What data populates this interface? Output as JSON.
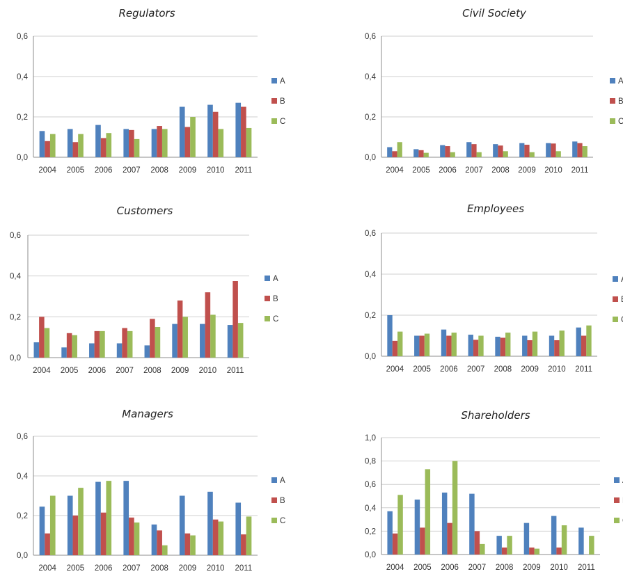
{
  "colors": {
    "A": "#4f81bd",
    "B": "#c0504d",
    "C": "#9bbb59"
  },
  "chart_data": [
    {
      "type": "bar",
      "title": "Regulators",
      "categories": [
        "2004",
        "2005",
        "2006",
        "2007",
        "2008",
        "2009",
        "2010",
        "2011"
      ],
      "yticks": [
        "0,0",
        "0,2",
        "0,4",
        "0,6"
      ],
      "ylim": [
        0,
        0.6
      ],
      "legend_position": "right",
      "series": [
        {
          "name": "A",
          "values": [
            0.13,
            0.14,
            0.16,
            0.14,
            0.14,
            0.25,
            0.26,
            0.27
          ]
        },
        {
          "name": "B",
          "values": [
            0.08,
            0.075,
            0.095,
            0.135,
            0.155,
            0.15,
            0.225,
            0.25
          ]
        },
        {
          "name": "C",
          "values": [
            0.115,
            0.115,
            0.12,
            0.09,
            0.14,
            0.2,
            0.14,
            0.145
          ]
        }
      ]
    },
    {
      "type": "bar",
      "title": "Civil Society",
      "categories": [
        "2004",
        "2005",
        "2006",
        "2007",
        "2008",
        "2009",
        "2010",
        "2011"
      ],
      "yticks": [
        "0,0",
        "0,2",
        "0,4",
        "0,6"
      ],
      "ylim": [
        0,
        0.6
      ],
      "legend_position": "right",
      "series": [
        {
          "name": "A",
          "values": [
            0.05,
            0.04,
            0.06,
            0.075,
            0.065,
            0.07,
            0.07,
            0.078
          ]
        },
        {
          "name": "B",
          "values": [
            0.03,
            0.035,
            0.055,
            0.065,
            0.058,
            0.062,
            0.068,
            0.07
          ]
        },
        {
          "name": "C",
          "values": [
            0.075,
            0.022,
            0.025,
            0.025,
            0.03,
            0.025,
            0.03,
            0.055
          ]
        }
      ]
    },
    {
      "type": "bar",
      "title": "Customers",
      "categories": [
        "2004",
        "2005",
        "2006",
        "2007",
        "2008",
        "2009",
        "2010",
        "2011"
      ],
      "yticks": [
        "0,0",
        "0,2",
        "0,4",
        "0,6"
      ],
      "ylim": [
        0,
        0.6
      ],
      "legend_position": "right",
      "series": [
        {
          "name": "A",
          "values": [
            0.075,
            0.05,
            0.07,
            0.07,
            0.06,
            0.165,
            0.165,
            0.16
          ]
        },
        {
          "name": "B",
          "values": [
            0.2,
            0.12,
            0.13,
            0.145,
            0.19,
            0.28,
            0.32,
            0.375
          ]
        },
        {
          "name": "C",
          "values": [
            0.145,
            0.11,
            0.13,
            0.13,
            0.15,
            0.2,
            0.21,
            0.17
          ]
        }
      ]
    },
    {
      "type": "bar",
      "title": "Employees",
      "categories": [
        "2004",
        "2005",
        "2006",
        "2007",
        "2008",
        "2009",
        "2010",
        "2011"
      ],
      "yticks": [
        "0,0",
        "0,2",
        "0,4",
        "0,6"
      ],
      "ylim": [
        0,
        0.6
      ],
      "legend_position": "right",
      "series": [
        {
          "name": "A",
          "values": [
            0.2,
            0.1,
            0.13,
            0.105,
            0.095,
            0.1,
            0.1,
            0.14
          ]
        },
        {
          "name": "B",
          "values": [
            0.075,
            0.1,
            0.1,
            0.08,
            0.09,
            0.078,
            0.078,
            0.1
          ]
        },
        {
          "name": "C",
          "values": [
            0.12,
            0.11,
            0.115,
            0.1,
            0.115,
            0.12,
            0.125,
            0.15
          ]
        }
      ]
    },
    {
      "type": "bar",
      "title": "Managers",
      "categories": [
        "2004",
        "2005",
        "2006",
        "2007",
        "2008",
        "2009",
        "2010",
        "2011"
      ],
      "yticks": [
        "0,0",
        "0,2",
        "0,4",
        "0,6"
      ],
      "ylim": [
        0,
        0.6
      ],
      "legend_position": "right",
      "series": [
        {
          "name": "A",
          "values": [
            0.245,
            0.3,
            0.37,
            0.375,
            0.155,
            0.3,
            0.32,
            0.265
          ]
        },
        {
          "name": "B",
          "values": [
            0.11,
            0.2,
            0.215,
            0.19,
            0.125,
            0.11,
            0.18,
            0.105
          ]
        },
        {
          "name": "C",
          "values": [
            0.3,
            0.34,
            0.375,
            0.165,
            0.05,
            0.1,
            0.17,
            0.195
          ]
        }
      ]
    },
    {
      "type": "bar",
      "title": "Shareholders",
      "categories": [
        "2004",
        "2005",
        "2006",
        "2007",
        "2008",
        "2009",
        "2010",
        "2011"
      ],
      "yticks": [
        "0,0",
        "0,2",
        "0,4",
        "0,6",
        "0,8",
        "1,0"
      ],
      "ylim": [
        0,
        1.0
      ],
      "legend_position": "right",
      "series": [
        {
          "name": "A",
          "values": [
            0.37,
            0.47,
            0.53,
            0.52,
            0.16,
            0.27,
            0.33,
            0.23
          ]
        },
        {
          "name": "B",
          "values": [
            0.18,
            0.23,
            0.27,
            0.2,
            0.06,
            0.06,
            0.06,
            0.0
          ]
        },
        {
          "name": "C",
          "values": [
            0.51,
            0.73,
            0.8,
            0.09,
            0.16,
            0.05,
            0.25,
            0.16
          ]
        }
      ]
    }
  ]
}
